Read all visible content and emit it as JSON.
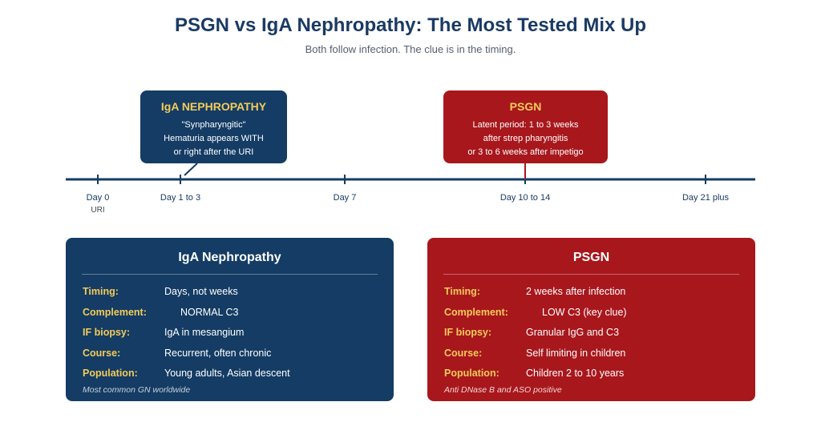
{
  "header": {
    "title": "PSGN vs IgA Nephropathy: The Most Tested Mix Up",
    "subtitle": "Both follow infection. The clue is in the timing."
  },
  "colors": {
    "navy": "#143c64",
    "red": "#a8171c",
    "gold": "#f4cb5a"
  },
  "timeline": {
    "ticks": [
      {
        "label": "Day 0",
        "sub": "URI"
      },
      {
        "label": "Day 1 to 3",
        "sub": ""
      },
      {
        "label": "Day 7",
        "sub": ""
      },
      {
        "label": "Day 10 to 14",
        "sub": ""
      },
      {
        "label": "Day 21 plus",
        "sub": ""
      }
    ]
  },
  "callouts": {
    "iga": {
      "title": "IgA NEPHROPATHY",
      "lines": [
        "\"Synpharyngitic\"",
        "Hematuria appears WITH",
        "or right after the URI"
      ]
    },
    "psgn": {
      "title": "PSGN",
      "lines": [
        "Latent period: 1 to 3 weeks",
        "after strep pharyngitis",
        "or 3 to 6 weeks after impetigo"
      ]
    }
  },
  "cards": {
    "iga": {
      "title": "IgA Nephropathy",
      "rows": [
        {
          "label": "Timing:",
          "value": "Days, not weeks"
        },
        {
          "label": "Complement:",
          "value": "NORMAL C3"
        },
        {
          "label": "IF biopsy:",
          "value": "IgA in mesangium"
        },
        {
          "label": "Course:",
          "value": "Recurrent, often chronic"
        },
        {
          "label": "Population:",
          "value": "Young adults, Asian descent"
        }
      ],
      "note": "Most common GN worldwide"
    },
    "psgn": {
      "title": "PSGN",
      "rows": [
        {
          "label": "Timing:",
          "value": "2 weeks after infection"
        },
        {
          "label": "Complement:",
          "value": "LOW C3 (key clue)"
        },
        {
          "label": "IF biopsy:",
          "value": "Granular IgG and C3"
        },
        {
          "label": "Course:",
          "value": "Self limiting in children"
        },
        {
          "label": "Population:",
          "value": "Children 2 to 10 years"
        }
      ],
      "note": "Anti DNase B and ASO positive"
    }
  }
}
